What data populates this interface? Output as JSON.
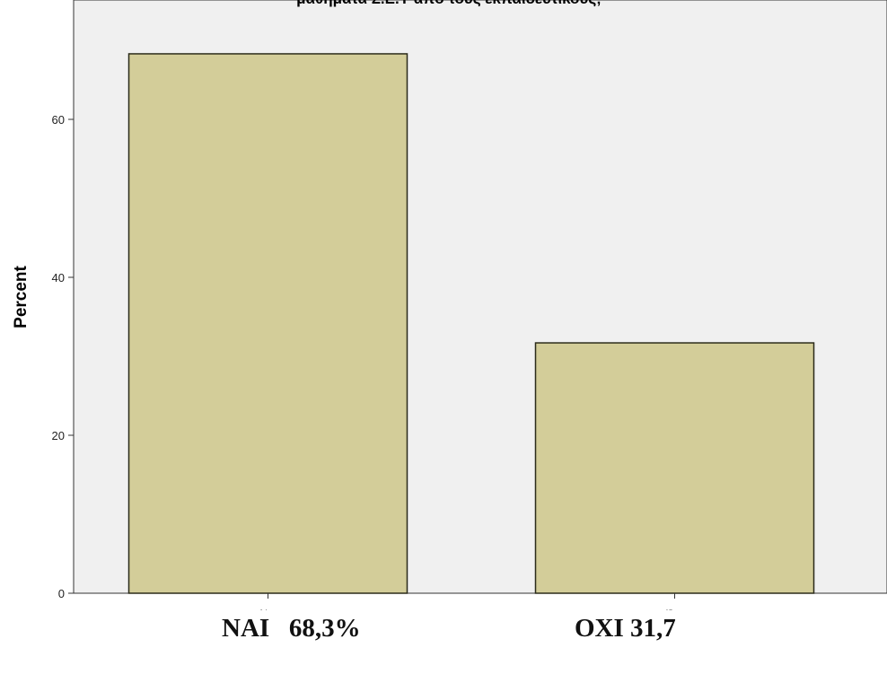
{
  "chart_data": {
    "type": "bar",
    "title": "μαθήματα Σ.Ε.Υ από τους εκπαιδευτικούς;",
    "xlabel": "",
    "ylabel": "Percent",
    "categories": [
      "Ναι",
      "Όχι"
    ],
    "values": [
      68.3,
      31.7
    ],
    "ylim": [
      0,
      74
    ],
    "yticks": [
      0,
      20,
      40,
      60
    ],
    "grid": false,
    "colors": {
      "bar_fill": "#d3cd99",
      "bar_stroke": "#2b2b1a",
      "plot_background": "#f0f0f0"
    }
  },
  "summary": {
    "nai": "NAI   68,3%",
    "oxi": "OXI 31,7"
  }
}
